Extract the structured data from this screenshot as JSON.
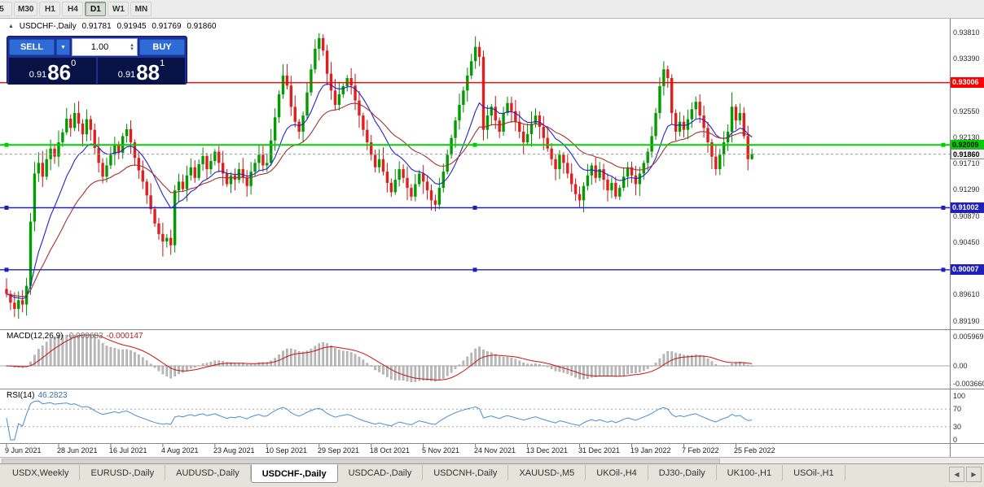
{
  "toolbar": {
    "timeframes": [
      {
        "label": "5",
        "active": false
      },
      {
        "label": "M30",
        "active": false
      },
      {
        "label": "H1",
        "active": false
      },
      {
        "label": "H4",
        "active": false
      },
      {
        "label": "D1",
        "active": true
      },
      {
        "label": "W1",
        "active": false
      },
      {
        "label": "MN",
        "active": false
      }
    ]
  },
  "header": {
    "symbol": "USDCHF-,Daily",
    "open": "0.91781",
    "high": "0.91945",
    "low": "0.91769",
    "close": "0.91860"
  },
  "trade_panel": {
    "sell_label": "SELL",
    "buy_label": "BUY",
    "volume": "1.00",
    "sell_price": {
      "prefix": "0.91",
      "big": "86",
      "sup": "0"
    },
    "buy_price": {
      "prefix": "0.91",
      "big": "88",
      "sup": "1"
    }
  },
  "price_axis_ticks": [
    "0.93810",
    "0.93390",
    "0.92550",
    "0.92130",
    "0.91710",
    "0.91290",
    "0.90870",
    "0.90450",
    "0.89610",
    "0.89190"
  ],
  "colors": {
    "bull": "#009c00",
    "bear": "#e01f1f",
    "wick_bull": "#008a00",
    "wick_bear": "#c81414",
    "ma_fast": "#2222cc",
    "ma_slow": "#a33030",
    "hline_red": "#ff0000",
    "hline_green": "#00d000",
    "hline_blue": "#2020bb",
    "macd_hist": "#bcbcbc",
    "macd_hist_stroke": "#8f8f8f",
    "macd_signal": "#cc1111",
    "macd_zero": "#a8a8a8",
    "rsi_line": "#4a8fd0",
    "rsi_level": "#9a9a9a",
    "axis_text": "#2a2a2a"
  },
  "chart_data": {
    "type": "candlestick",
    "symbol": "USDCHF-",
    "timeframe": "Daily",
    "title": "USDCHF-,Daily",
    "ylim": [
      0.8908,
      0.9394
    ],
    "first_open": 0.897,
    "closes": [
      0.8962,
      0.8948,
      0.8938,
      0.8952,
      0.8945,
      0.8975,
      0.9078,
      0.9155,
      0.9172,
      0.915,
      0.9178,
      0.9195,
      0.9182,
      0.9205,
      0.9221,
      0.9243,
      0.9228,
      0.9252,
      0.9235,
      0.9218,
      0.9242,
      0.9225,
      0.9196,
      0.9172,
      0.915,
      0.9168,
      0.9185,
      0.9202,
      0.9188,
      0.9215,
      0.9226,
      0.9205,
      0.918,
      0.916,
      0.9142,
      0.912,
      0.9098,
      0.9075,
      0.9058,
      0.9046,
      0.9052,
      0.904,
      0.9128,
      0.9142,
      0.913,
      0.9152,
      0.9165,
      0.9148,
      0.917,
      0.9183,
      0.9162,
      0.9175,
      0.919,
      0.9172,
      0.9155,
      0.9138,
      0.9152,
      0.9145,
      0.9162,
      0.9148,
      0.9135,
      0.9158,
      0.9172,
      0.9185,
      0.9168,
      0.9172,
      0.9208,
      0.9245,
      0.9282,
      0.9312,
      0.9296,
      0.9262,
      0.9238,
      0.9222,
      0.9248,
      0.9285,
      0.9322,
      0.9355,
      0.9372,
      0.9352,
      0.9315,
      0.9288,
      0.9265,
      0.9282,
      0.9295,
      0.9308,
      0.9296,
      0.9272,
      0.9248,
      0.9225,
      0.9205,
      0.9185,
      0.9165,
      0.9178,
      0.9158,
      0.914,
      0.9125,
      0.9145,
      0.9162,
      0.9148,
      0.9132,
      0.9118,
      0.9138,
      0.9155,
      0.9142,
      0.9128,
      0.9112,
      0.9105,
      0.9132,
      0.9158,
      0.9185,
      0.9212,
      0.924,
      0.9265,
      0.9288,
      0.9312,
      0.9335,
      0.9358,
      0.9342,
      0.9225,
      0.9248,
      0.9262,
      0.924,
      0.9222,
      0.9252,
      0.9268,
      0.9255,
      0.9238,
      0.9222,
      0.9205,
      0.9218,
      0.9235,
      0.9248,
      0.923,
      0.9212,
      0.9195,
      0.9178,
      0.9162,
      0.9185,
      0.9172,
      0.9155,
      0.9138,
      0.9122,
      0.9112,
      0.9135,
      0.9152,
      0.9168,
      0.9148,
      0.9162,
      0.9145,
      0.9128,
      0.914,
      0.9118,
      0.9132,
      0.915,
      0.9165,
      0.9152,
      0.9138,
      0.9155,
      0.9172,
      0.919,
      0.9215,
      0.9252,
      0.9295,
      0.9322,
      0.9308,
      0.9252,
      0.9222,
      0.9238,
      0.9225,
      0.9242,
      0.9258,
      0.927,
      0.9248,
      0.9228,
      0.9205,
      0.9182,
      0.9162,
      0.9185,
      0.9205,
      0.9222,
      0.9262,
      0.924,
      0.9252,
      0.9215,
      0.9178,
      0.9186
    ],
    "wick_overrides": {
      "2": {
        "l": 0.8925
      },
      "6": {
        "h": 0.9092
      },
      "17": {
        "h": 0.9268
      },
      "39": {
        "l": 0.9022
      },
      "41": {
        "l": 0.9025
      },
      "69": {
        "h": 0.933
      },
      "78": {
        "h": 0.938
      },
      "79": {
        "h": 0.9378
      },
      "117": {
        "h": 0.9375
      },
      "119": {
        "l": 0.9208
      },
      "164": {
        "h": 0.9335
      },
      "181": {
        "h": 0.9285
      }
    },
    "last_candle": {
      "o": 0.91781,
      "h": 0.91945,
      "l": 0.91769,
      "c": 0.9186
    },
    "x_labels": [
      {
        "text": "9 Jun 2021",
        "bar": 0
      },
      {
        "text": "28 Jun 2021",
        "bar": 13
      },
      {
        "text": "16 Jul 2021",
        "bar": 26
      },
      {
        "text": "4 Aug 2021",
        "bar": 39
      },
      {
        "text": "23 Aug 2021",
        "bar": 52
      },
      {
        "text": "10 Sep 2021",
        "bar": 65
      },
      {
        "text": "29 Sep 2021",
        "bar": 78
      },
      {
        "text": "18 Oct 2021",
        "bar": 91
      },
      {
        "text": "5 Nov 2021",
        "bar": 104
      },
      {
        "text": "24 Nov 2021",
        "bar": 117
      },
      {
        "text": "13 Dec 2021",
        "bar": 130
      },
      {
        "text": "31 Dec 2021",
        "bar": 143
      },
      {
        "text": "19 Jan 2022",
        "bar": 156
      },
      {
        "text": "7 Feb 2022",
        "bar": 169
      },
      {
        "text": "25 Feb 2022",
        "bar": 182
      }
    ],
    "hlines": [
      {
        "price": 0.93006,
        "label": "0.93006",
        "color": "#ff0000",
        "label_fg": "#ffffff",
        "width": 1.4,
        "handles": false
      },
      {
        "price": 0.92009,
        "label": "0.92009",
        "color": "#00d000",
        "label_fg": "#000000",
        "width": 2,
        "handles": true
      },
      {
        "price": 0.91002,
        "label": "0.91002",
        "color": "#2020bb",
        "label_fg": "#ffffff",
        "width": 1.4,
        "handles": true
      },
      {
        "price": 0.90007,
        "label": "0.90007",
        "color": "#2020bb",
        "label_fg": "#ffffff",
        "width": 1.4,
        "handles": true
      }
    ],
    "current_price": {
      "value": 0.9186,
      "label": "0.91860",
      "bg": "#f0f0f0",
      "fg": "#000000"
    },
    "moving_averages": [
      {
        "type": "ema",
        "period": 12,
        "color": "#2222cc"
      },
      {
        "type": "ema",
        "period": 26,
        "color": "#a33030"
      }
    ],
    "indicators": {
      "macd": {
        "name": "MACD(12,26,9)",
        "fast": 12,
        "slow": 26,
        "signal": 9,
        "value_main": "-0.000683",
        "value_signal": "-0.000147",
        "axis_ticks": [
          "0.005969",
          "0.00",
          "-0.003660"
        ]
      },
      "rsi": {
        "name": "RSI(14)",
        "period": 14,
        "value": "46.2823",
        "axis_ticks": [
          "100",
          "70",
          "30",
          "0"
        ],
        "levels": [
          70,
          30
        ]
      }
    }
  },
  "tabs": {
    "items": [
      "USDX,Weekly",
      "EURUSD-,Daily",
      "AUDUSD-,Daily",
      "USDCHF-,Daily",
      "USDCAD-,Daily",
      "USDCNH-,Daily",
      "XAUUSD-,M5",
      "UKOil-,H4",
      "DJ30-,Daily",
      "UK100-,H1",
      "USOil-,H1"
    ],
    "active_index": 3
  }
}
